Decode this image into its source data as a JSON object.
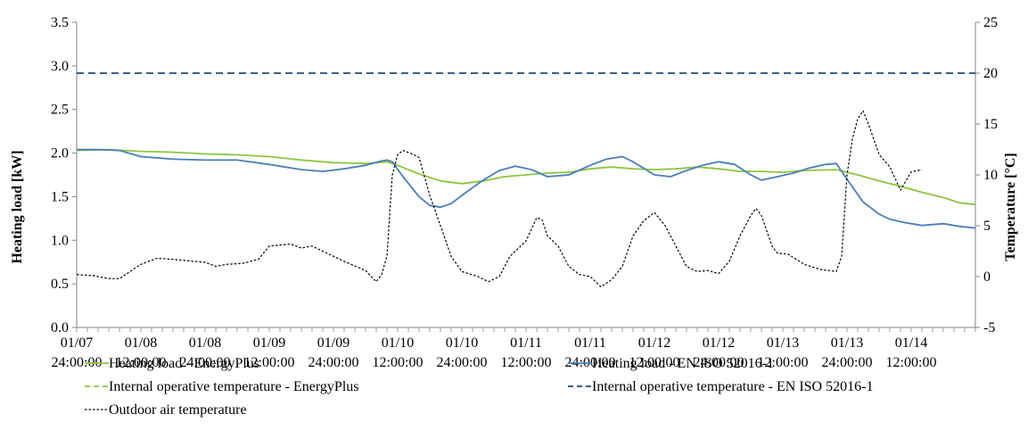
{
  "chart_data": {
    "type": "line",
    "title": "",
    "ylabel": "Heating load [kW]",
    "y2label": "Temperature [°C]",
    "ylim": [
      0,
      3.5
    ],
    "y2lim": [
      -5,
      25
    ],
    "yticks": [
      "0.0",
      "0.5",
      "1.0",
      "1.5",
      "2.0",
      "2.5",
      "3.0",
      "3.5"
    ],
    "y2ticks": [
      "-5",
      "0",
      "5",
      "10",
      "15",
      "20",
      "25"
    ],
    "xlim": [
      0,
      168
    ],
    "xcategories": [
      {
        "date": "01/07",
        "time": "24:00:00"
      },
      {
        "date": "01/08",
        "time": "12:00:00"
      },
      {
        "date": "01/08",
        "time": "24:00:00"
      },
      {
        "date": "01/09",
        "time": "12:00:00"
      },
      {
        "date": "01/09",
        "time": "24:00:00"
      },
      {
        "date": "01/10",
        "time": "12:00:00"
      },
      {
        "date": "01/10",
        "time": "24:00:00"
      },
      {
        "date": "01/11",
        "time": "12:00:00"
      },
      {
        "date": "01/11",
        "time": "24:00:00"
      },
      {
        "date": "01/12",
        "time": "12:00:00"
      },
      {
        "date": "01/12",
        "time": "24:00:00"
      },
      {
        "date": "01/13",
        "time": "12:00:00"
      },
      {
        "date": "01/13",
        "time": "24:00:00"
      },
      {
        "date": "01/14",
        "time": "12:00:00"
      }
    ],
    "legend_position": "bottom",
    "series": [
      {
        "name": "Heating load - EnergyPlus",
        "axis": "left",
        "color": "#8cc63f",
        "dash": "solid",
        "points": [
          [
            0,
            2.03
          ],
          [
            6,
            2.04
          ],
          [
            12,
            2.02
          ],
          [
            18,
            2.01
          ],
          [
            24,
            1.99
          ],
          [
            30,
            1.98
          ],
          [
            36,
            1.96
          ],
          [
            42,
            1.92
          ],
          [
            48,
            1.89
          ],
          [
            54,
            1.88
          ],
          [
            58,
            1.9
          ],
          [
            60,
            1.86
          ],
          [
            64,
            1.76
          ],
          [
            68,
            1.68
          ],
          [
            72,
            1.65
          ],
          [
            76,
            1.68
          ],
          [
            80,
            1.73
          ],
          [
            84,
            1.75
          ],
          [
            88,
            1.77
          ],
          [
            92,
            1.78
          ],
          [
            96,
            1.82
          ],
          [
            100,
            1.84
          ],
          [
            104,
            1.82
          ],
          [
            108,
            1.81
          ],
          [
            112,
            1.82
          ],
          [
            116,
            1.84
          ],
          [
            120,
            1.82
          ],
          [
            124,
            1.79
          ],
          [
            128,
            1.79
          ],
          [
            132,
            1.78
          ],
          [
            136,
            1.8
          ],
          [
            142,
            1.81
          ],
          [
            146,
            1.75
          ],
          [
            150,
            1.68
          ],
          [
            154,
            1.62
          ],
          [
            158,
            1.55
          ],
          [
            162,
            1.49
          ],
          [
            165,
            1.43
          ],
          [
            168,
            1.41
          ]
        ]
      },
      {
        "name": "Heating load - EN ISO 52016-1",
        "axis": "left",
        "color": "#4a7ebb",
        "dash": "solid",
        "points": [
          [
            0,
            2.04
          ],
          [
            4,
            2.04
          ],
          [
            8,
            2.03
          ],
          [
            12,
            1.96
          ],
          [
            18,
            1.93
          ],
          [
            24,
            1.92
          ],
          [
            30,
            1.92
          ],
          [
            36,
            1.87
          ],
          [
            42,
            1.81
          ],
          [
            46,
            1.79
          ],
          [
            50,
            1.82
          ],
          [
            54,
            1.86
          ],
          [
            57,
            1.91
          ],
          [
            58,
            1.92
          ],
          [
            59,
            1.9
          ],
          [
            61,
            1.73
          ],
          [
            64,
            1.5
          ],
          [
            66,
            1.4
          ],
          [
            68,
            1.38
          ],
          [
            70,
            1.42
          ],
          [
            73,
            1.56
          ],
          [
            76,
            1.69
          ],
          [
            79,
            1.8
          ],
          [
            82,
            1.85
          ],
          [
            85,
            1.81
          ],
          [
            88,
            1.73
          ],
          [
            92,
            1.75
          ],
          [
            96,
            1.86
          ],
          [
            99,
            1.93
          ],
          [
            102,
            1.96
          ],
          [
            104,
            1.9
          ],
          [
            108,
            1.75
          ],
          [
            111,
            1.73
          ],
          [
            114,
            1.8
          ],
          [
            117,
            1.86
          ],
          [
            120,
            1.9
          ],
          [
            123,
            1.87
          ],
          [
            126,
            1.75
          ],
          [
            128,
            1.69
          ],
          [
            131,
            1.73
          ],
          [
            134,
            1.77
          ],
          [
            137,
            1.83
          ],
          [
            140,
            1.87
          ],
          [
            142,
            1.88
          ],
          [
            144,
            1.7
          ],
          [
            147,
            1.44
          ],
          [
            150,
            1.3
          ],
          [
            152,
            1.24
          ],
          [
            155,
            1.2
          ],
          [
            158,
            1.17
          ],
          [
            160,
            1.18
          ],
          [
            162,
            1.19
          ],
          [
            165,
            1.16
          ],
          [
            168,
            1.14
          ]
        ]
      },
      {
        "name": "Internal operative temperature - EnergyPlus",
        "axis": "right",
        "color": "#8cc63f",
        "dash": "dashed",
        "points": []
      },
      {
        "name": "Internal operative temperature - EN ISO 52016-1",
        "axis": "right",
        "color": "#1f497d",
        "dash": "dashed",
        "points": [
          [
            0,
            20
          ],
          [
            168,
            20
          ]
        ]
      },
      {
        "name": "Outdoor air temperature",
        "axis": "right",
        "color": "#000000",
        "dash": "dotted",
        "points": [
          [
            0,
            0.2
          ],
          [
            3,
            0.1
          ],
          [
            6,
            -0.2
          ],
          [
            8,
            -0.2
          ],
          [
            10,
            0.5
          ],
          [
            12,
            1.2
          ],
          [
            15,
            1.8
          ],
          [
            18,
            1.7
          ],
          [
            20,
            1.6
          ],
          [
            24,
            1.4
          ],
          [
            26,
            1
          ],
          [
            28,
            1.2
          ],
          [
            31,
            1.3
          ],
          [
            34,
            1.7
          ],
          [
            36,
            3
          ],
          [
            40,
            3.2
          ],
          [
            42,
            2.8
          ],
          [
            44,
            3
          ],
          [
            46,
            2.5
          ],
          [
            50,
            1.5
          ],
          [
            54,
            0.6
          ],
          [
            56,
            -0.5
          ],
          [
            57,
            0.2
          ],
          [
            58,
            2
          ],
          [
            59,
            10
          ],
          [
            60,
            12
          ],
          [
            61,
            12.4
          ],
          [
            63,
            12
          ],
          [
            64,
            11.7
          ],
          [
            66,
            8
          ],
          [
            68,
            5
          ],
          [
            70,
            2
          ],
          [
            72,
            0.5
          ],
          [
            75,
            0
          ],
          [
            77,
            -0.5
          ],
          [
            79,
            0
          ],
          [
            81,
            2
          ],
          [
            83,
            3
          ],
          [
            84,
            3.5
          ],
          [
            86,
            5.8
          ],
          [
            87,
            5.6
          ],
          [
            88,
            4
          ],
          [
            90,
            3
          ],
          [
            92,
            1
          ],
          [
            94,
            0.2
          ],
          [
            96,
            0
          ],
          [
            98,
            -1
          ],
          [
            100,
            -0.3
          ],
          [
            102,
            1
          ],
          [
            104,
            4
          ],
          [
            106,
            5.5
          ],
          [
            108,
            6.3
          ],
          [
            110,
            5
          ],
          [
            112,
            3
          ],
          [
            114,
            1
          ],
          [
            116,
            0.5
          ],
          [
            118,
            0.6
          ],
          [
            120,
            0.3
          ],
          [
            122,
            1.5
          ],
          [
            124,
            4
          ],
          [
            126,
            6
          ],
          [
            127,
            6.7
          ],
          [
            128,
            6
          ],
          [
            130,
            3
          ],
          [
            131,
            2.3
          ],
          [
            133,
            2.2
          ],
          [
            136,
            1.2
          ],
          [
            139,
            0.7
          ],
          [
            142,
            0.5
          ],
          [
            143,
            2
          ],
          [
            144,
            10
          ],
          [
            145,
            13.5
          ],
          [
            146,
            15.5
          ],
          [
            147,
            16.3
          ],
          [
            148,
            15
          ],
          [
            150,
            12
          ],
          [
            152,
            10.8
          ],
          [
            154,
            8.5
          ],
          [
            156,
            10.3
          ],
          [
            158,
            10.5
          ]
        ]
      }
    ]
  }
}
